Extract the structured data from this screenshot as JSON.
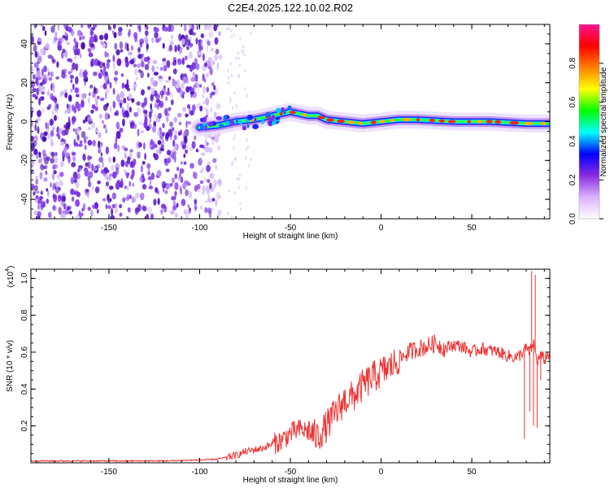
{
  "figure_title": "C2E4.2025.122.10.02.R02",
  "chart_data": [
    {
      "type": "heatmap",
      "title": "C2E4.2025.122.10.02.R02",
      "xlabel": "Height of straight line (km)",
      "ylabel": "Frequency (Hz)",
      "xlim": [
        -193,
        93
      ],
      "ylim": [
        -50,
        50
      ],
      "x_ticks": [
        -150,
        -100,
        -50,
        0,
        50
      ],
      "x_tick_labels": [
        "-150",
        "-100",
        "-50",
        "0",
        "50"
      ],
      "y_ticks": [
        -40,
        -20,
        0,
        20,
        40
      ],
      "y_tick_labels": [
        "-40",
        "-20",
        "0",
        "20",
        "40"
      ],
      "noise_region_x": [
        -193,
        -85
      ],
      "signal_track": {
        "x": [
          -100,
          -90,
          -80,
          -70,
          -60,
          -50,
          -45,
          -40,
          -35,
          -30,
          -20,
          -10,
          0,
          10,
          20,
          40,
          60,
          80,
          93
        ],
        "frequency": [
          -3,
          -2,
          0,
          1,
          3,
          5,
          4,
          3,
          3,
          1,
          0,
          -1,
          0,
          1,
          1,
          0,
          0,
          -1,
          -1
        ]
      },
      "colorbar": {
        "label": "Normalized spectral amplitude",
        "range": [
          0,
          1
        ],
        "ticks": [
          0.0,
          0.2,
          0.4,
          0.6,
          0.8
        ],
        "tick_labels": [
          "0.0",
          "0.2",
          "0.4",
          "0.6",
          "0.8"
        ],
        "colors": [
          "#ffffff",
          "#d9b3ff",
          "#8a2be2",
          "#0000ff",
          "#00ffff",
          "#00ff00",
          "#ffff00",
          "#ff8000",
          "#ff0000",
          "#ff1493"
        ]
      }
    },
    {
      "type": "line",
      "xlabel": "Height of straight line (km)",
      "ylabel": "SNR (10 * v/v)",
      "scale_label": "(x10",
      "scale_exp": "4",
      "xlim": [
        -193,
        93
      ],
      "ylim": [
        0,
        1.05
      ],
      "x_ticks": [
        -150,
        -100,
        -50,
        0,
        50
      ],
      "x_tick_labels": [
        "-150",
        "-100",
        "-50",
        "0",
        "50"
      ],
      "y_ticks": [
        0.2,
        0.4,
        0.6,
        0.8,
        1.0
      ],
      "y_tick_labels": [
        "0.2",
        "0.4",
        "0.6",
        "0.8",
        "1.0"
      ],
      "color": "#ee3333",
      "series": [
        {
          "x": [
            -193,
            -170,
            -150,
            -120,
            -100,
            -90,
            -80,
            -75,
            -70,
            -65,
            -60,
            -55,
            -50,
            -45,
            -40,
            -35,
            -30,
            -25,
            -20,
            -15,
            -10,
            -5,
            0,
            5,
            10,
            15,
            20,
            25,
            30,
            35,
            40,
            45,
            50,
            55,
            60,
            65,
            70,
            75,
            78,
            80,
            82,
            84,
            86,
            88,
            90,
            93
          ],
          "y": [
            0.01,
            0.01,
            0.01,
            0.01,
            0.015,
            0.02,
            0.04,
            0.06,
            0.07,
            0.08,
            0.1,
            0.12,
            0.16,
            0.18,
            0.17,
            0.14,
            0.2,
            0.27,
            0.34,
            0.36,
            0.42,
            0.46,
            0.49,
            0.52,
            0.56,
            0.6,
            0.62,
            0.63,
            0.65,
            0.62,
            0.64,
            0.63,
            0.6,
            0.62,
            0.61,
            0.6,
            0.58,
            0.57,
            0.6,
            0.62,
            0.6,
            0.65,
            0.55,
            0.58,
            0.56,
            0.6
          ]
        }
      ],
      "spikes": [
        {
          "x": 79,
          "y": 0.13
        },
        {
          "x": 82,
          "y": 0.28
        },
        {
          "x": 83,
          "y": 1.04
        },
        {
          "x": 84,
          "y": 0.2
        },
        {
          "x": 85,
          "y": 1.02
        },
        {
          "x": 86,
          "y": 0.19
        },
        {
          "x": 88,
          "y": 0.45
        }
      ]
    }
  ]
}
